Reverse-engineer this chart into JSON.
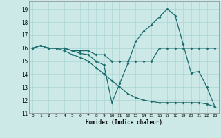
{
  "xlabel": "Humidex (Indice chaleur)",
  "bg_color": "#cce9e8",
  "line_color": "#1a6b6b",
  "grid_color": "#aad4d3",
  "xlim": [
    -0.5,
    23.5
  ],
  "ylim": [
    11,
    19.6
  ],
  "yticks": [
    11,
    12,
    13,
    14,
    15,
    16,
    17,
    18,
    19
  ],
  "xticks": [
    0,
    1,
    2,
    3,
    4,
    5,
    6,
    7,
    8,
    9,
    10,
    11,
    12,
    13,
    14,
    15,
    16,
    17,
    18,
    19,
    20,
    21,
    22,
    23
  ],
  "line1_x": [
    0,
    1,
    2,
    3,
    4,
    5,
    6,
    7,
    8,
    9,
    10,
    11,
    12,
    13,
    14,
    15,
    16,
    17,
    18,
    19,
    20,
    21,
    22,
    23
  ],
  "line1_y": [
    16.0,
    16.2,
    16.0,
    16.0,
    16.0,
    15.8,
    15.8,
    15.8,
    15.5,
    15.5,
    15.0,
    15.0,
    15.0,
    15.0,
    15.0,
    15.0,
    16.0,
    16.0,
    16.0,
    16.0,
    16.0,
    16.0,
    16.0,
    16.0
  ],
  "line2_x": [
    0,
    1,
    2,
    3,
    4,
    5,
    6,
    7,
    8,
    9,
    10,
    11,
    12,
    13,
    14,
    15,
    16,
    17,
    18,
    19,
    20,
    21,
    22,
    23
  ],
  "line2_y": [
    16.0,
    16.2,
    16.0,
    16.0,
    16.0,
    15.8,
    15.6,
    15.5,
    15.0,
    14.7,
    11.8,
    13.3,
    14.8,
    16.5,
    17.3,
    17.8,
    18.4,
    19.0,
    18.5,
    16.3,
    14.1,
    14.2,
    13.0,
    11.5
  ],
  "line3_x": [
    0,
    1,
    2,
    3,
    4,
    5,
    6,
    7,
    8,
    9,
    10,
    11,
    12,
    13,
    14,
    15,
    16,
    17,
    18,
    19,
    20,
    21,
    22,
    23
  ],
  "line3_y": [
    16.0,
    16.2,
    16.0,
    16.0,
    15.8,
    15.5,
    15.3,
    15.0,
    14.5,
    14.0,
    13.5,
    13.0,
    12.5,
    12.2,
    12.0,
    11.9,
    11.8,
    11.8,
    11.8,
    11.8,
    11.8,
    11.8,
    11.7,
    11.5
  ]
}
